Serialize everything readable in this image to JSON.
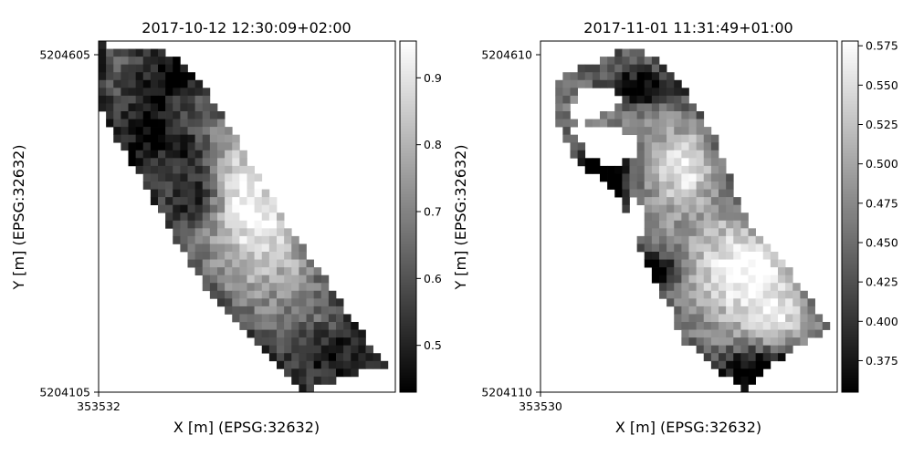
{
  "chart_data": [
    {
      "type": "heatmap",
      "title": "2017-10-12 12:30:09+02:00",
      "xlabel": "X [m] (EPSG:32632)",
      "ylabel": "Y [m] (EPSG:32632)",
      "xticks": [
        {
          "value": 353532,
          "label": "353532"
        }
      ],
      "yticks": [
        {
          "value": 5204105,
          "label": "5204105"
        },
        {
          "value": 5204605,
          "label": "5204605"
        }
      ],
      "colorbar": {
        "cmap": "gray",
        "range": [
          0.43,
          0.955
        ],
        "ticks": [
          {
            "value": 0.5,
            "label": "0.5"
          },
          {
            "value": 0.6,
            "label": "0.6"
          },
          {
            "value": 0.7,
            "label": "0.7"
          },
          {
            "value": 0.8,
            "label": "0.8"
          },
          {
            "value": 0.9,
            "label": "0.9"
          }
        ]
      },
      "raster": {
        "rows": 45,
        "cols": 40,
        "polygon": [
          [
            0.45,
            0.45
          ],
          [
            9.5,
            1.5
          ],
          [
            13.3,
            4.3
          ],
          [
            25.5,
            23.5
          ],
          [
            33.5,
            34.5
          ],
          [
            38.5,
            41.5
          ],
          [
            27.8,
            44.9
          ],
          [
            14.5,
            32.0
          ],
          [
            0.5,
            9.3
          ]
        ],
        "blobs": [
          {
            "r": 17.5,
            "c": 21.0,
            "rr": 9.0,
            "rc": 6.0,
            "a": 0.28
          },
          {
            "r": 26.0,
            "c": 24.0,
            "rr": 7.0,
            "rc": 8.0,
            "a": 0.14
          },
          {
            "r": 11.0,
            "c": 7.0,
            "rr": 6.0,
            "rc": 4.5,
            "a": -0.22
          },
          {
            "r": 20.0,
            "c": 13.0,
            "rr": 4.0,
            "rc": 3.5,
            "a": -0.2
          },
          {
            "r": 4.5,
            "c": 10.0,
            "rr": 3.0,
            "rc": 4.5,
            "a": -0.15
          },
          {
            "r": 40.0,
            "c": 31.0,
            "rr": 3.5,
            "rc": 6.0,
            "a": -0.18
          },
          {
            "r": 14.0,
            "c": 13.0,
            "rr": 3.0,
            "rc": 3.0,
            "a": -0.12
          }
        ],
        "base": 0.66,
        "edge_darkening": 0.12,
        "noise": 0.07,
        "seed": 12
      }
    },
    {
      "type": "heatmap",
      "title": "2017-11-01 11:31:49+01:00",
      "xlabel": "X [m] (EPSG:32632)",
      "ylabel": "Y [m] (EPSG:32632)",
      "xticks": [
        {
          "value": 353530,
          "label": "353530"
        }
      ],
      "yticks": [
        {
          "value": 5204110,
          "label": "5204110"
        },
        {
          "value": 5204610,
          "label": "5204610"
        }
      ],
      "colorbar": {
        "cmap": "gray",
        "range": [
          0.355,
          0.578
        ],
        "ticks": [
          {
            "value": 0.375,
            "label": "0.375"
          },
          {
            "value": 0.4,
            "label": "0.400"
          },
          {
            "value": 0.425,
            "label": "0.425"
          },
          {
            "value": 0.45,
            "label": "0.450"
          },
          {
            "value": 0.475,
            "label": "0.475"
          },
          {
            "value": 0.5,
            "label": "0.500"
          },
          {
            "value": 0.525,
            "label": "0.525"
          },
          {
            "value": 0.55,
            "label": "0.550"
          },
          {
            "value": 0.575,
            "label": "0.575"
          }
        ]
      },
      "raster": {
        "rows": 45,
        "cols": 40,
        "polygon": [
          [
            1.6,
            5.0
          ],
          [
            12.3,
            0.5
          ],
          [
            17.5,
            3.5
          ],
          [
            23.5,
            12.4
          ],
          [
            27.9,
            23.1
          ],
          [
            32.0,
            27.1
          ],
          [
            39.1,
            37.1
          ],
          [
            33.0,
            40.1
          ],
          [
            27.3,
            44.9
          ],
          [
            19.3,
            38.5
          ],
          [
            13.9,
            28.3
          ],
          [
            10.1,
            19.1
          ],
          [
            4.5,
            15.1
          ],
          [
            1.6,
            8.5
          ]
        ],
        "holes": [
          [
            [
              4.1,
              8.0
            ],
            [
              6.2,
              5.5
            ],
            [
              10.3,
              6.1
            ],
            [
              10.7,
              8.3
            ],
            [
              7.4,
              9.6
            ],
            [
              5.6,
              11.1
            ],
            [
              4.0,
              10.0
            ]
          ],
          [
            [
              4.5,
              11.5
            ],
            [
              9.0,
              10.5
            ],
            [
              12.8,
              12.6
            ],
            [
              12.8,
              14.5
            ],
            [
              9.0,
              16.3
            ],
            [
              6.5,
              14.5
            ]
          ],
          [
            [
              11.5,
              20.0
            ],
            [
              14.0,
              21.0
            ],
            [
              14.3,
              25.4
            ],
            [
              12.5,
              25.0
            ]
          ],
          [
            [
              14.8,
              36.5
            ],
            [
              18.0,
              34.0
            ],
            [
              18.8,
              38.5
            ],
            [
              17.5,
              40.5
            ],
            [
              15.0,
              39.5
            ]
          ]
        ],
        "blobs": [
          {
            "r": 16.0,
            "c": 19.0,
            "rr": 4.0,
            "rc": 4.0,
            "a": 0.1
          },
          {
            "r": 29.0,
            "c": 28.0,
            "rr": 6.0,
            "rc": 7.0,
            "a": 0.11
          },
          {
            "r": 36.0,
            "c": 32.0,
            "rr": 4.0,
            "rc": 5.0,
            "a": 0.06
          },
          {
            "r": 17.0,
            "c": 8.5,
            "rr": 3.5,
            "rc": 3.5,
            "a": -0.17
          },
          {
            "r": 6.0,
            "c": 13.0,
            "rr": 2.5,
            "rc": 5.0,
            "a": -0.13
          },
          {
            "r": 29.5,
            "c": 16.0,
            "rr": 2.5,
            "rc": 3.0,
            "a": -0.12
          },
          {
            "r": 42.0,
            "c": 29.0,
            "rr": 3.0,
            "rc": 5.0,
            "a": -0.13
          }
        ],
        "base": 0.475,
        "edge_darkening": 0.05,
        "noise": 0.03,
        "seed": 31
      }
    }
  ]
}
